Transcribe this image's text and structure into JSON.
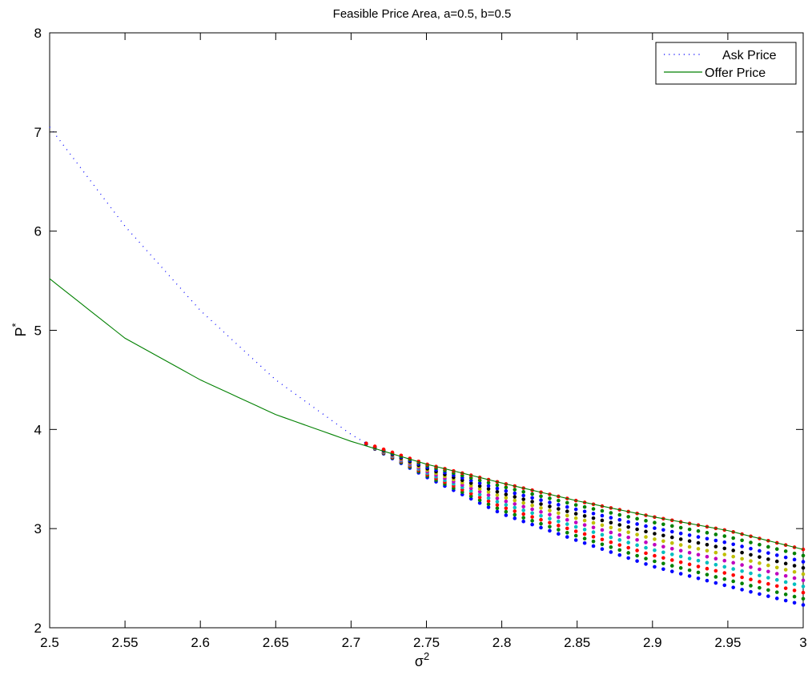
{
  "chart_data": {
    "type": "scatter",
    "title": "Feasible Price Area, a=0.5, b=0.5",
    "xlabel": "σ",
    "xlabel_sup": "2",
    "ylabel": "P",
    "ylabel_sup": "*",
    "xlim": [
      2.5,
      3.0
    ],
    "ylim": [
      2,
      8
    ],
    "xticks": [
      2.5,
      2.55,
      2.6,
      2.65,
      2.7,
      2.75,
      2.8,
      2.85,
      2.9,
      2.95,
      3.0
    ],
    "xtick_labels": [
      "2.5",
      "2.55",
      "2.6",
      "2.65",
      "2.7",
      "2.75",
      "2.8",
      "2.85",
      "2.9",
      "2.95",
      "3"
    ],
    "yticks": [
      2,
      3,
      4,
      5,
      6,
      7,
      8
    ],
    "ytick_labels": [
      "2",
      "3",
      "4",
      "5",
      "6",
      "7",
      "8"
    ],
    "grid": false,
    "legend_position": "top-right",
    "series": [
      {
        "name": "Ask Price",
        "style": "dotted",
        "color": "#0000ff",
        "x": [
          2.5,
          2.55,
          2.6,
          2.65,
          2.7,
          2.71
        ],
        "y": [
          7.05,
          6.05,
          5.2,
          4.5,
          3.95,
          3.86
        ]
      },
      {
        "name": "Offer Price",
        "style": "solid",
        "color": "#008000",
        "x": [
          2.5,
          2.55,
          2.6,
          2.65,
          2.7,
          2.75,
          2.8,
          2.85,
          2.9,
          2.95,
          3.0
        ],
        "y": [
          5.52,
          4.92,
          4.5,
          4.15,
          3.88,
          3.65,
          3.46,
          3.28,
          3.12,
          2.98,
          2.79
        ]
      }
    ],
    "feasible_region": {
      "x_start": 2.71,
      "x_end": 3.0,
      "x_step": 0.0058,
      "points_per_column": 10,
      "upper": {
        "x": [
          2.71,
          2.75,
          2.8,
          2.85,
          2.9,
          2.95,
          3.0
        ],
        "y": [
          3.86,
          3.65,
          3.46,
          3.28,
          3.12,
          2.98,
          2.79
        ]
      },
      "lower": {
        "x": [
          2.71,
          2.75,
          2.8,
          2.85,
          2.9,
          2.95,
          3.0
        ],
        "y": [
          3.85,
          3.52,
          3.15,
          2.88,
          2.62,
          2.42,
          2.23
        ]
      },
      "colors": [
        "#0000ff",
        "#008000",
        "#ff0000",
        "#00bfbf",
        "#bf00bf",
        "#bfbf00",
        "#000000"
      ]
    }
  }
}
